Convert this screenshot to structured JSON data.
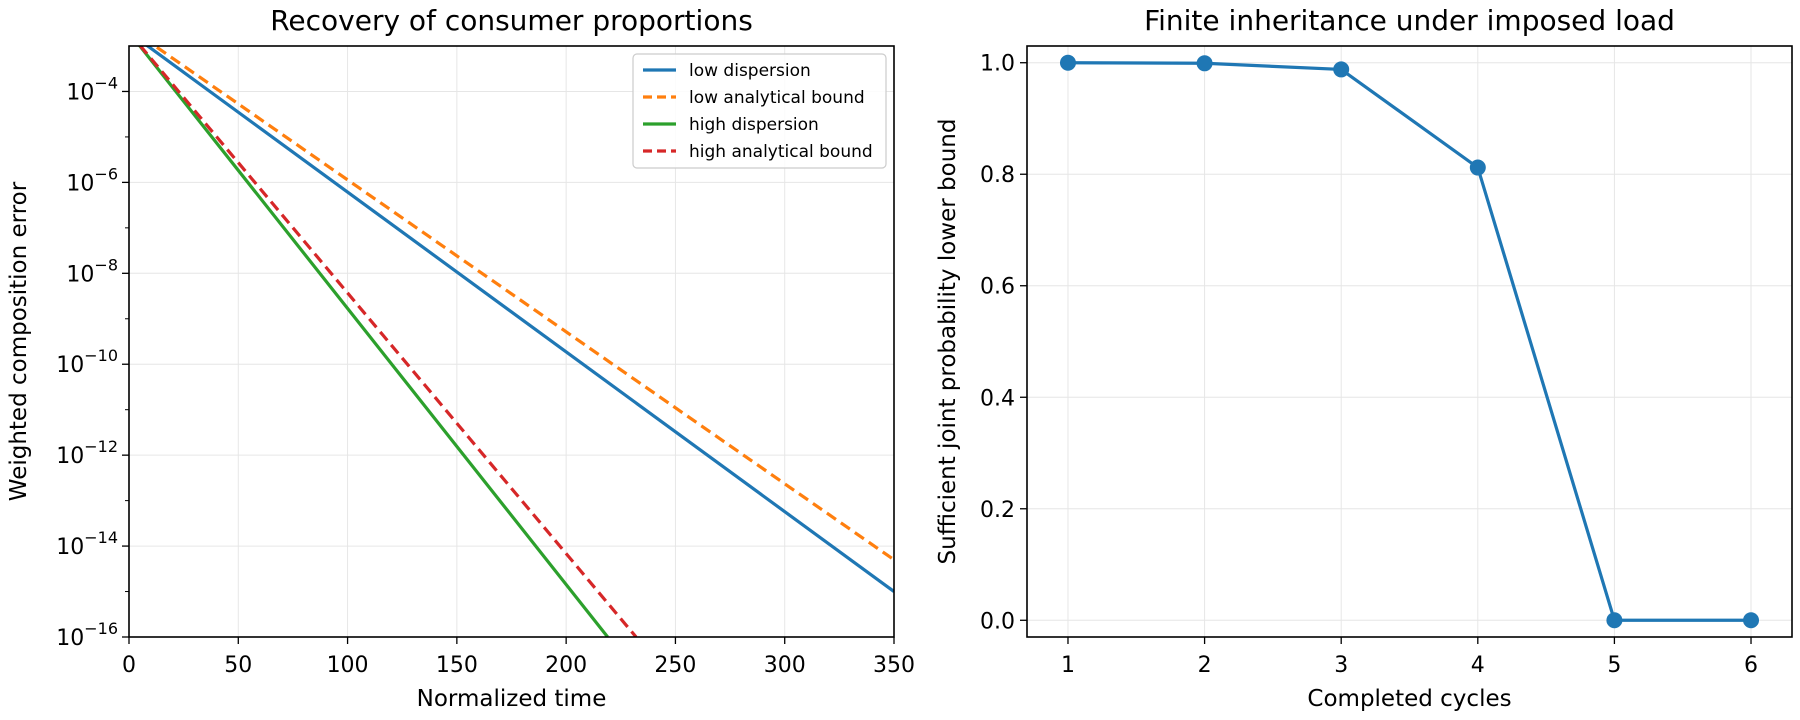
{
  "colors": {
    "blue": "#1f77b4",
    "orange": "#ff7f0e",
    "green": "#2ca02c",
    "red": "#d62728",
    "grid": "#e6e6e6"
  },
  "chart_data": [
    {
      "type": "line",
      "title": "Recovery of consumer proportions",
      "xlabel": "Normalized time",
      "ylabel": "Weighted composition error",
      "xlim": [
        0,
        350
      ],
      "ylim": [
        1e-16,
        0.001
      ],
      "yscale": "log",
      "grid": true,
      "legend_position": "top-right",
      "x_ticks": [
        "0",
        "50",
        "100",
        "150",
        "200",
        "250",
        "300",
        "350"
      ],
      "y_ticks": [
        {
          "base": "10",
          "exp": "−16"
        },
        {
          "base": "10",
          "exp": "−14"
        },
        {
          "base": "10",
          "exp": "−12"
        },
        {
          "base": "10",
          "exp": "−10"
        },
        {
          "base": "10",
          "exp": "−8"
        },
        {
          "base": "10",
          "exp": "−6"
        },
        {
          "base": "10",
          "exp": "−4"
        }
      ],
      "series": [
        {
          "name": "low dispersion",
          "color": "#1f77b4",
          "style": "solid",
          "x": [
            0,
            350
          ],
          "y": [
            0.002,
            1e-15
          ]
        },
        {
          "name": "low analytical bound",
          "color": "#ff7f0e",
          "style": "dashed",
          "x": [
            0,
            350
          ],
          "y": [
            0.0025,
            5e-15
          ]
        },
        {
          "name": "high dispersion",
          "color": "#2ca02c",
          "style": "solid",
          "x": [
            0,
            219
          ],
          "y": [
            0.002,
            1e-16
          ]
        },
        {
          "name": "high analytical bound",
          "color": "#d62728",
          "style": "dashed",
          "x": [
            0,
            232
          ],
          "y": [
            0.002,
            1e-16
          ]
        }
      ]
    },
    {
      "type": "line",
      "title": "Finite inheritance under imposed load",
      "xlabel": "Completed cycles",
      "ylabel": "Sufficient joint probability lower bound",
      "xlim": [
        0.7,
        6.3
      ],
      "ylim": [
        -0.03,
        1.03
      ],
      "grid": true,
      "x_ticks": [
        "1",
        "2",
        "3",
        "4",
        "5",
        "6"
      ],
      "y_ticks": [
        "0.0",
        "0.2",
        "0.4",
        "0.6",
        "0.8",
        "1.0"
      ],
      "series": [
        {
          "color": "#1f77b4",
          "marker": "circle",
          "x": [
            1,
            2,
            3,
            4,
            5,
            6
          ],
          "y": [
            1.0,
            0.999,
            0.988,
            0.812,
            0.0,
            0.0
          ]
        }
      ]
    }
  ]
}
